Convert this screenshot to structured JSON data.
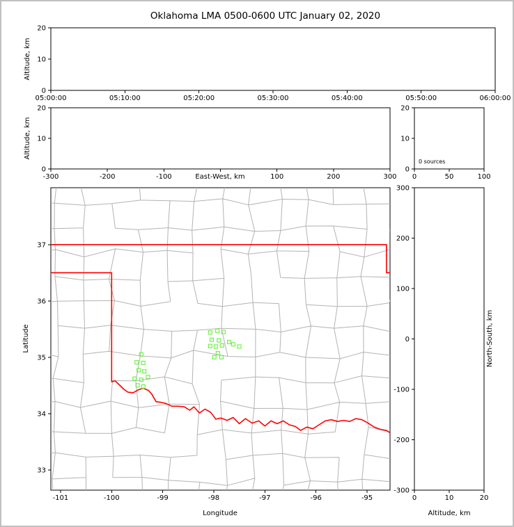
{
  "title": "Oklahoma LMA 0500-0600 UTC January 02, 2020",
  "colors": {
    "background": "#ffffff",
    "frame": "#000000",
    "window_border": "#c0c0c0",
    "county": "#b3b3b3",
    "state_border": "#ff0000",
    "source_marker": "#64f23c"
  },
  "panels": {
    "time_height": {
      "ylabel": "Altitude, km",
      "yticks": [
        0,
        10,
        20
      ],
      "xtick_labels": [
        "05:00:00",
        "05:10:00",
        "05:20:00",
        "05:30:00",
        "05:40:00",
        "05:50:00",
        "06:00:00"
      ]
    },
    "ew_height": {
      "ylabel": "Altitude, km",
      "xlabel": "East-West, km",
      "yticks": [
        0,
        10,
        20
      ],
      "xticks": [
        -300,
        -200,
        -100,
        0,
        100,
        200,
        300
      ],
      "xtick_labels": [
        "-300",
        "-200",
        "-100",
        "",
        "100",
        "200",
        "300"
      ]
    },
    "histogram": {
      "annotation": "0 sources",
      "yticks": [
        0,
        10,
        20
      ],
      "xticks": [
        0,
        50,
        100
      ]
    },
    "map": {
      "ylabel": "Latitude",
      "xlabel": "Longitude",
      "yticks": [
        33,
        34,
        35,
        36,
        37
      ],
      "xticks": [
        -101,
        -100,
        -99,
        -98,
        -97,
        -96,
        -95
      ]
    },
    "ns_height": {
      "ylabel": "North-South, km",
      "xlabel": "Altitude, km",
      "yticks": [
        -300,
        -200,
        -100,
        0,
        100,
        200,
        300
      ],
      "xticks": [
        0,
        10,
        20
      ]
    }
  },
  "chart_data": {
    "type": "scatter",
    "title": "Oklahoma LMA 0500-0600 UTC January 02, 2020",
    "panels": {
      "altitude_vs_time": {
        "x_range": [
          "05:00:00",
          "06:00:00"
        ],
        "y_range": [
          0,
          20
        ],
        "points": []
      },
      "altitude_vs_east_west": {
        "x_range": [
          -300,
          300
        ],
        "y_range": [
          0,
          20
        ],
        "points": []
      },
      "source_count_histogram": {
        "x_range": [
          0,
          100
        ],
        "y_range": [
          0,
          20
        ],
        "total_sources": 0
      },
      "north_south_vs_altitude": {
        "x_range": [
          0,
          20
        ],
        "y_range": [
          -300,
          300
        ],
        "points": []
      }
    },
    "map": {
      "lon_range": [
        -101.19,
        -94.55
      ],
      "lat_range": [
        32.64,
        38.01
      ],
      "sources": [
        [
          -99.42,
          35.05
        ],
        [
          -99.51,
          34.91
        ],
        [
          -99.38,
          34.9
        ],
        [
          -99.47,
          34.77
        ],
        [
          -99.36,
          34.75
        ],
        [
          -99.55,
          34.62
        ],
        [
          -99.42,
          34.6
        ],
        [
          -99.29,
          34.65
        ],
        [
          -99.49,
          34.5
        ],
        [
          -99.38,
          34.48
        ],
        [
          -98.07,
          35.44
        ],
        [
          -97.93,
          35.47
        ],
        [
          -97.81,
          35.45
        ],
        [
          -98.04,
          35.31
        ],
        [
          -97.9,
          35.3
        ],
        [
          -98.07,
          35.2
        ],
        [
          -97.96,
          35.19
        ],
        [
          -97.84,
          35.21
        ],
        [
          -97.7,
          35.27
        ],
        [
          -97.62,
          35.23
        ],
        [
          -97.5,
          35.19
        ],
        [
          -97.92,
          35.07
        ],
        [
          -97.99,
          35.0
        ],
        [
          -97.85,
          35.0
        ]
      ],
      "state_border": [
        [
          [
            -101.2,
            37.0
          ],
          [
            -94.62,
            37.0
          ],
          [
            -94.62,
            36.5
          ],
          [
            -94.55,
            36.5
          ]
        ],
        [
          [
            -101.2,
            36.5
          ],
          [
            -100.0,
            36.5
          ],
          [
            -100.0,
            34.565
          ],
          [
            -99.93,
            34.58
          ],
          [
            -99.85,
            34.51
          ],
          [
            -99.76,
            34.43
          ],
          [
            -99.68,
            34.38
          ],
          [
            -99.58,
            34.37
          ],
          [
            -99.48,
            34.42
          ],
          [
            -99.38,
            34.45
          ],
          [
            -99.28,
            34.41
          ],
          [
            -99.21,
            34.34
          ],
          [
            -99.13,
            34.21
          ],
          [
            -99.04,
            34.2
          ],
          [
            -98.94,
            34.18
          ],
          [
            -98.82,
            34.13
          ],
          [
            -98.7,
            34.13
          ],
          [
            -98.58,
            34.12
          ],
          [
            -98.47,
            34.06
          ],
          [
            -98.39,
            34.12
          ],
          [
            -98.28,
            34.01
          ],
          [
            -98.17,
            34.08
          ],
          [
            -98.06,
            34.02
          ],
          [
            -97.96,
            33.9
          ],
          [
            -97.86,
            33.92
          ],
          [
            -97.74,
            33.88
          ],
          [
            -97.62,
            33.93
          ],
          [
            -97.5,
            33.82
          ],
          [
            -97.38,
            33.91
          ],
          [
            -97.25,
            33.83
          ],
          [
            -97.12,
            33.87
          ],
          [
            -97.0,
            33.78
          ],
          [
            -96.88,
            33.87
          ],
          [
            -96.76,
            33.82
          ],
          [
            -96.64,
            33.87
          ],
          [
            -96.52,
            33.8
          ],
          [
            -96.4,
            33.77
          ],
          [
            -96.3,
            33.7
          ],
          [
            -96.18,
            33.76
          ],
          [
            -96.06,
            33.73
          ],
          [
            -95.94,
            33.8
          ],
          [
            -95.82,
            33.87
          ],
          [
            -95.7,
            33.89
          ],
          [
            -95.58,
            33.86
          ],
          [
            -95.46,
            33.88
          ],
          [
            -95.34,
            33.86
          ],
          [
            -95.22,
            33.91
          ],
          [
            -95.1,
            33.89
          ],
          [
            -94.98,
            33.83
          ],
          [
            -94.86,
            33.76
          ],
          [
            -94.74,
            33.72
          ],
          [
            -94.62,
            33.7
          ],
          [
            -94.55,
            33.66
          ]
        ]
      ],
      "county_grid": {
        "lon0": -101.65,
        "lat0": 32.35,
        "dlon": 0.55,
        "dlat": 0.45,
        "cols": 14,
        "rows": 14,
        "jitter": 0.08,
        "skip": 0.13
      }
    }
  }
}
